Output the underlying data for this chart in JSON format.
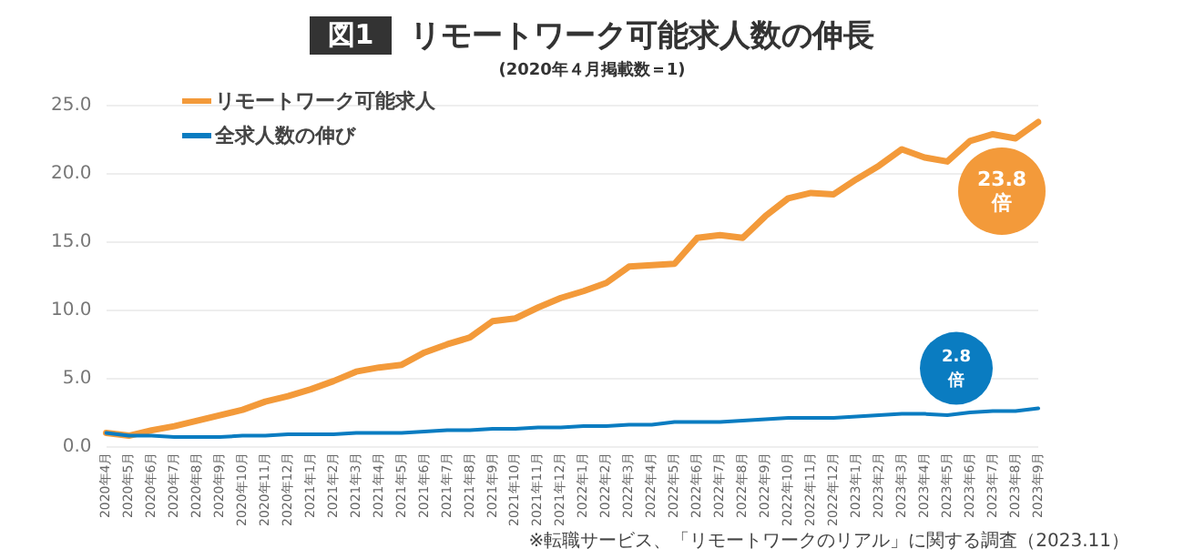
{
  "chart_data": {
    "type": "line",
    "title": "図1 リモートワーク可能求人数の伸長",
    "subtitle": "(2020年４月掲載数＝1)",
    "categories": [
      "2020年4月",
      "2020年5月",
      "2020年6月",
      "2020年7月",
      "2020年8月",
      "2020年9月",
      "2020年10月",
      "2020年11月",
      "2020年12月",
      "2021年1月",
      "2021年2月",
      "2021年3月",
      "2021年4月",
      "2021年5月",
      "2021年6月",
      "2021年7月",
      "2021年8月",
      "2021年9月",
      "2021年10月",
      "2021年11月",
      "2021年12月",
      "2022年1月",
      "2022年2月",
      "2022年3月",
      "2022年4月",
      "2022年5月",
      "2022年6月",
      "2022年7月",
      "2022年8月",
      "2022年9月",
      "2022年10月",
      "2022年11月",
      "2022年12月",
      "2023年1月",
      "2023年2月",
      "2023年3月",
      "2023年4月",
      "2023年5月",
      "2023年6月",
      "2023年7月",
      "2023年8月",
      "2023年9月"
    ],
    "series": [
      {
        "name": "リモートワーク可能求人",
        "color": "#f39a3a",
        "values": [
          1.0,
          0.8,
          1.2,
          1.5,
          1.9,
          2.3,
          2.7,
          3.3,
          3.7,
          4.2,
          4.8,
          5.5,
          5.8,
          6.0,
          6.9,
          7.5,
          8.0,
          9.2,
          9.4,
          10.2,
          10.9,
          11.4,
          12.0,
          13.2,
          13.3,
          13.4,
          15.3,
          15.5,
          15.3,
          16.9,
          18.2,
          18.6,
          18.5,
          19.6,
          20.6,
          21.8,
          21.2,
          20.9,
          22.4,
          22.9,
          22.6,
          23.8
        ]
      },
      {
        "name": "全求人数の伸び",
        "color": "#0a7cc1",
        "values": [
          1.0,
          0.8,
          0.8,
          0.7,
          0.7,
          0.7,
          0.8,
          0.8,
          0.9,
          0.9,
          0.9,
          1.0,
          1.0,
          1.0,
          1.1,
          1.2,
          1.2,
          1.3,
          1.3,
          1.4,
          1.4,
          1.5,
          1.5,
          1.6,
          1.6,
          1.8,
          1.8,
          1.8,
          1.9,
          2.0,
          2.1,
          2.1,
          2.1,
          2.2,
          2.3,
          2.4,
          2.4,
          2.3,
          2.5,
          2.6,
          2.6,
          2.8
        ]
      }
    ],
    "ylim": [
      0,
      25
    ],
    "yticks": [
      {
        "value": 0,
        "label": "0.0"
      },
      {
        "value": 5,
        "label": "5.0"
      },
      {
        "value": 10,
        "label": "10.0"
      },
      {
        "value": 15,
        "label": "15.0"
      },
      {
        "value": 20,
        "label": "20.0"
      },
      {
        "value": 25,
        "label": "25.0"
      }
    ],
    "grid": "y",
    "legend": "top left",
    "marker": "none",
    "line_style": "solid",
    "annotations": [
      "23.8倍",
      "2.8倍",
      "※転職サービス、「リモートワークのリアル」に関する調査（2023.11）"
    ]
  }
}
